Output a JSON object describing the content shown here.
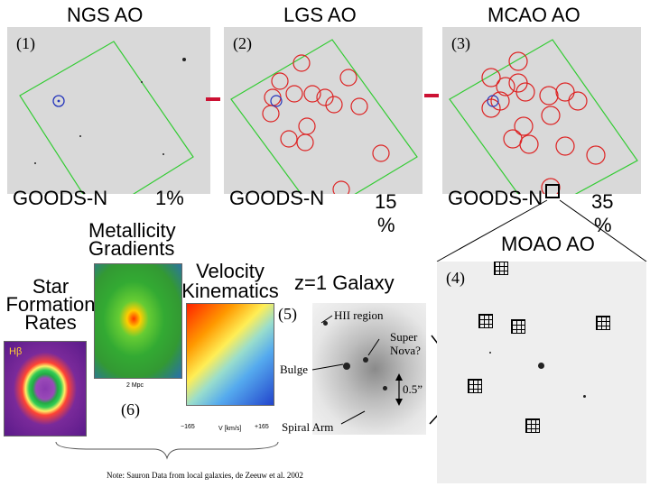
{
  "headers": {
    "ngs": "NGS AO",
    "lgs": "LGS AO",
    "mcao": "MCAO AO"
  },
  "panels": {
    "p1": {
      "number": "(1)",
      "field": "GOODS-N",
      "percent": "1%"
    },
    "p2": {
      "number": "(2)",
      "field": "GOODS-N",
      "percent_a": "15",
      "percent_b": "%"
    },
    "p3": {
      "number": "(3)",
      "field": "GOODS-N",
      "percent_a": "35",
      "percent_b": "%"
    },
    "p4": {
      "number": "(4)",
      "title": "MOAO AO"
    },
    "p5": {
      "number": "(5)",
      "heading": "z=1 Galaxy",
      "hii": "HII region",
      "supernova_a": "Super",
      "supernova_b": "Nova?",
      "bulge": "Bulge",
      "scale": "0.5”",
      "arm": "Spiral Arm"
    },
    "p6": {
      "number": "(6)"
    }
  },
  "science": {
    "metallicity_a": "Metallicity",
    "metallicity_b": "Gradients",
    "velocity_a": "Velocity",
    "velocity_b": "Kinematics",
    "sfr_a": "Star",
    "sfr_b": "Formation",
    "sfr_c": "Rates",
    "hbeta": "Hβ",
    "mpc": "2  Mpc",
    "velocity_axis_min": "−165",
    "velocity_axis_label": "V  [km/s]",
    "velocity_axis_max": "+165"
  },
  "note": "Note: Sauron Data from local galaxies, de Zeeuw et al. 2002",
  "colors": {
    "green": "#33cc33",
    "red": "#dd2222",
    "blue": "#2233bb",
    "arrow": "#cc1133"
  }
}
